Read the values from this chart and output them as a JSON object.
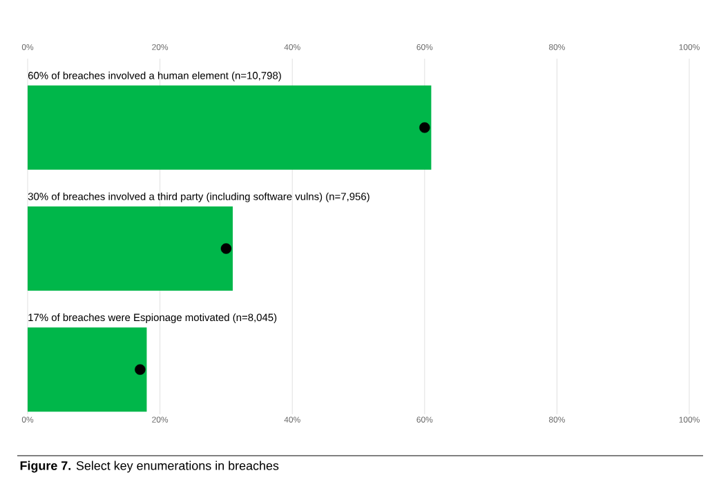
{
  "chart_data": {
    "type": "bar",
    "orientation": "horizontal",
    "categories": [
      "60% of breaches involved a human element (n=10,798)",
      "30% of breaches involved a third party (including software vulns) (n=7,956)",
      "17% of breaches were Espionage motivated (n=8,045)"
    ],
    "series": [
      {
        "color": "#00b74a",
        "values": [
          61,
          31,
          18
        ]
      },
      {
        "type": "scatter",
        "marker": "circle",
        "color": "#000000",
        "values": [
          60,
          30,
          17
        ]
      }
    ],
    "xlim": [
      0,
      100
    ],
    "xticks": [
      {
        "value": 0,
        "label": "0%"
      },
      {
        "value": 20,
        "label": "20%"
      },
      {
        "value": 40,
        "label": "40%"
      },
      {
        "value": 60,
        "label": "60%"
      },
      {
        "value": 80,
        "label": "80%"
      },
      {
        "value": 100,
        "label": "100%"
      }
    ],
    "x2lim": [
      0,
      100
    ],
    "x2ticks": [
      {
        "value": 0,
        "label": "0%"
      },
      {
        "value": 20,
        "label": "20%"
      },
      {
        "value": 40,
        "label": "40%"
      },
      {
        "value": 60,
        "label": "60%"
      },
      {
        "value": 80,
        "label": "80%"
      },
      {
        "value": 100,
        "label": "100%"
      }
    ],
    "grid": "x",
    "annotations": [
      "**Figure 7.** Select key enumerations in breaches"
    ]
  }
}
